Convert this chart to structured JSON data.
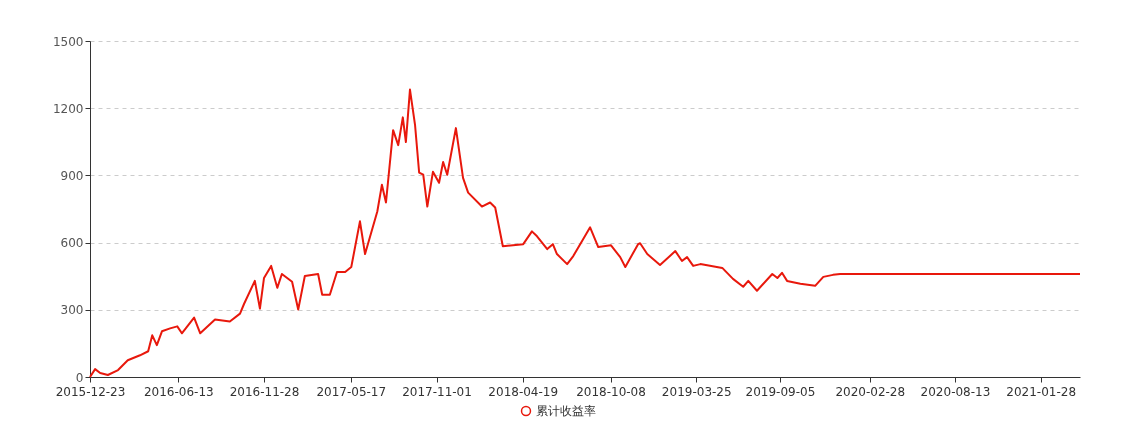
{
  "chart_data": {
    "type": "line",
    "legend": "bottom",
    "grid": "y",
    "line_style": "solid",
    "xlim": [
      "2015-12-23",
      "2021-04-15"
    ],
    "xticks": [
      "2015-12-23",
      "2016-06-13",
      "2016-11-28",
      "2017-05-17",
      "2017-11-01",
      "2018-04-19",
      "2018-10-08",
      "2019-03-25",
      "2019-09-05",
      "2020-02-28",
      "2020-08-13",
      "2021-01-28"
    ],
    "ylim": [
      0,
      1500
    ],
    "yticks": [
      0,
      300,
      600,
      900,
      1200,
      1500
    ],
    "series": [
      {
        "name": "累计收益率",
        "color": "#e8180c",
        "x": [
          "2015-12-23",
          "2016-01-02",
          "2016-01-12",
          "2016-01-27",
          "2016-02-16",
          "2016-03-06",
          "2016-03-30",
          "2016-04-15",
          "2016-04-23",
          "2016-05-02",
          "2016-05-12",
          "2016-05-28",
          "2016-06-11",
          "2016-06-20",
          "2016-07-14",
          "2016-07-26",
          "2016-08-24",
          "2016-09-22",
          "2016-10-12",
          "2016-10-20",
          "2016-11-10",
          "2016-11-20",
          "2016-11-28",
          "2016-12-12",
          "2016-12-24",
          "2017-01-02",
          "2017-01-22",
          "2017-02-03",
          "2017-02-16",
          "2017-03-14",
          "2017-03-22",
          "2017-04-06",
          "2017-04-20",
          "2017-05-06",
          "2017-05-18",
          "2017-06-04",
          "2017-06-14",
          "2017-07-08",
          "2017-07-17",
          "2017-07-25",
          "2017-08-08",
          "2017-08-18",
          "2017-08-27",
          "2017-09-02",
          "2017-09-10",
          "2017-09-20",
          "2017-09-28",
          "2017-10-06",
          "2017-10-14",
          "2017-10-25",
          "2017-11-06",
          "2017-11-14",
          "2017-11-22",
          "2017-12-09",
          "2017-12-23",
          "2018-01-02",
          "2018-01-29",
          "2018-02-14",
          "2018-02-24",
          "2018-03-11",
          "2018-04-20",
          "2018-05-07",
          "2018-05-17",
          "2018-06-06",
          "2018-06-17",
          "2018-06-25",
          "2018-07-15",
          "2018-07-27",
          "2018-08-13",
          "2018-08-29",
          "2018-09-14",
          "2018-10-09",
          "2018-10-27",
          "2018-11-06",
          "2018-12-01",
          "2018-12-05",
          "2018-12-19",
          "2019-01-13",
          "2019-02-12",
          "2019-02-25",
          "2019-03-07",
          "2019-03-19",
          "2019-04-02",
          "2019-05-15",
          "2019-06-05",
          "2019-06-25",
          "2019-07-05",
          "2019-07-22",
          "2019-08-21",
          "2019-08-31",
          "2019-09-09",
          "2019-09-19",
          "2019-10-15",
          "2019-11-13",
          "2019-11-29",
          "2019-12-18",
          "2020-01-01",
          "2020-02-28",
          "2020-08-13",
          "2021-01-28",
          "2021-04-15"
        ],
        "values": [
          0,
          35,
          18,
          9,
          31,
          75,
          97,
          115,
          186,
          142,
          204,
          217,
          226,
          195,
          265,
          195,
          257,
          248,
          283,
          327,
          429,
          305,
          442,
          496,
          398,
          460,
          425,
          301,
          451,
          460,
          367,
          367,
          469,
          469,
          491,
          695,
          549,
          739,
          858,
          779,
          1102,
          1035,
          1159,
          1049,
          1283,
          1124,
          912,
          903,
          761,
          916,
          867,
          960,
          903,
          1111,
          889,
          823,
          761,
          779,
          757,
          584,
          593,
          650,
          628,
          571,
          593,
          549,
          504,
          540,
          606,
          668,
          580,
          588,
          535,
          491,
          593,
          597,
          549,
          500,
          562,
          518,
          535,
          496,
          504,
          487,
          438,
          403,
          429,
          385,
          460,
          442,
          465,
          429,
          416,
          407,
          447,
          456,
          460,
          460,
          460,
          460,
          460
        ]
      }
    ]
  }
}
